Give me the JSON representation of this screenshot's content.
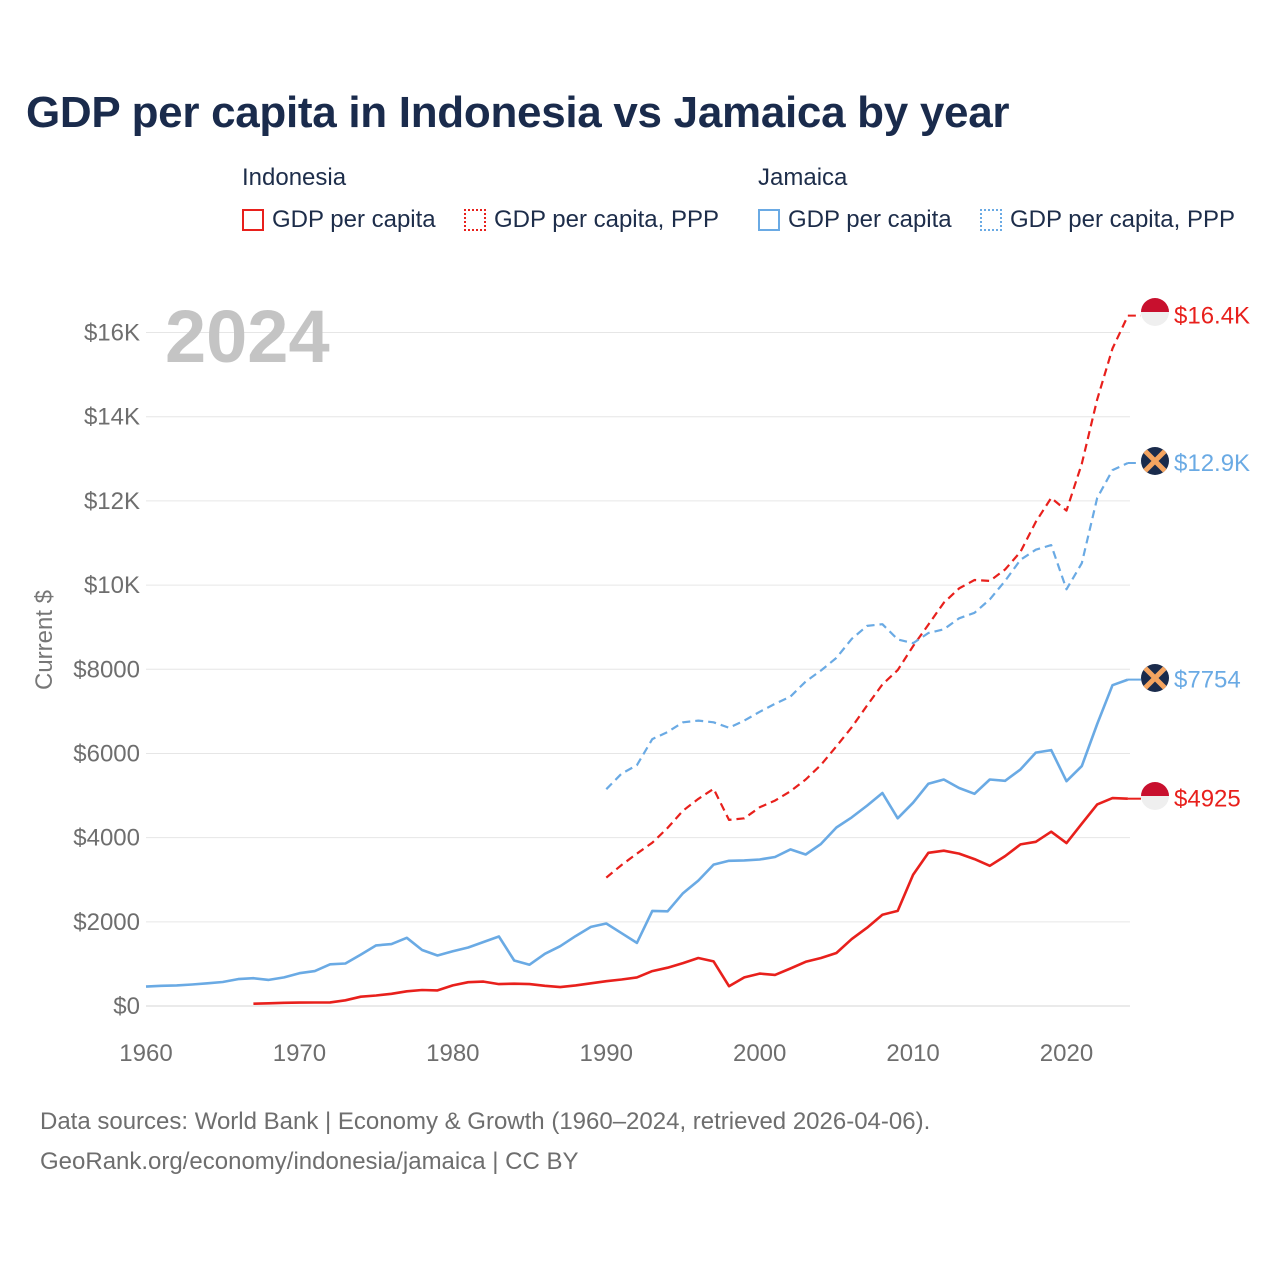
{
  "title": "GDP per capita in Indonesia vs Jamaica by year",
  "legend": {
    "groups": [
      {
        "name": "Indonesia",
        "items": [
          "GDP per capita",
          "GDP per capita, PPP"
        ]
      },
      {
        "name": "Jamaica",
        "items": [
          "GDP per capita",
          "GDP per capita, PPP"
        ]
      }
    ]
  },
  "footer": {
    "line1": "Data sources: World Bank | Economy & Growth (1960–2024, retrieved 2026-04-06).",
    "line2": "GeoRank.org/economy/indonesia/jamaica | CC BY"
  },
  "chart_data": {
    "type": "line",
    "title": "GDP per capita in Indonesia vs Jamaica by year",
    "year_label": "2024",
    "ylabel": "Current $",
    "xlabel": "",
    "xlim": [
      1960,
      2024
    ],
    "ylim": [
      0,
      17000
    ],
    "x_ticks": [
      1960,
      1970,
      1980,
      1990,
      2000,
      2010,
      2020
    ],
    "y_ticks": [
      {
        "value": 0,
        "label": "$0"
      },
      {
        "value": 2000,
        "label": "$2000"
      },
      {
        "value": 4000,
        "label": "$4000"
      },
      {
        "value": 6000,
        "label": "$6000"
      },
      {
        "value": 8000,
        "label": "$8000"
      },
      {
        "value": 10000,
        "label": "$10K"
      },
      {
        "value": 12000,
        "label": "$12K"
      },
      {
        "value": 14000,
        "label": "$14K"
      },
      {
        "value": 16000,
        "label": "$16K"
      }
    ],
    "colors": {
      "indonesia": "#e8201c",
      "jamaica": "#6aaae4"
    },
    "series": [
      {
        "name": "Indonesia GDP per capita",
        "country": "indonesia",
        "style": "solid",
        "end_label": "$4925",
        "x": [
          1967,
          1968,
          1969,
          1970,
          1971,
          1972,
          1973,
          1974,
          1975,
          1976,
          1977,
          1978,
          1979,
          1980,
          1981,
          1982,
          1983,
          1984,
          1985,
          1986,
          1987,
          1988,
          1989,
          1990,
          1991,
          1992,
          1993,
          1994,
          1995,
          1996,
          1997,
          1998,
          1999,
          2000,
          2001,
          2002,
          2003,
          2004,
          2005,
          2006,
          2007,
          2008,
          2009,
          2010,
          2011,
          2012,
          2013,
          2014,
          2015,
          2016,
          2017,
          2018,
          2019,
          2020,
          2021,
          2022,
          2023,
          2024
        ],
        "values": [
          55,
          65,
          75,
          80,
          82,
          85,
          135,
          220,
          250,
          290,
          350,
          380,
          370,
          490,
          565,
          580,
          520,
          530,
          520,
          480,
          450,
          490,
          540,
          590,
          630,
          680,
          830,
          910,
          1020,
          1140,
          1060,
          470,
          680,
          770,
          740,
          890,
          1050,
          1140,
          1260,
          1590,
          1860,
          2170,
          2260,
          3120,
          3640,
          3690,
          3620,
          3490,
          3330,
          3560,
          3840,
          3900,
          4140,
          3870,
          4330,
          4790,
          4940,
          4925
        ]
      },
      {
        "name": "Indonesia GDP per capita, PPP",
        "country": "indonesia",
        "style": "dashed",
        "end_label": "$16.4K",
        "x": [
          1990,
          1991,
          1992,
          1993,
          1994,
          1995,
          1996,
          1997,
          1998,
          1999,
          2000,
          2001,
          2002,
          2003,
          2004,
          2005,
          2006,
          2007,
          2008,
          2009,
          2010,
          2011,
          2012,
          2013,
          2014,
          2015,
          2016,
          2017,
          2018,
          2019,
          2020,
          2021,
          2022,
          2023,
          2024
        ],
        "values": [
          3050,
          3350,
          3620,
          3880,
          4230,
          4640,
          4920,
          5160,
          4420,
          4460,
          4720,
          4880,
          5100,
          5380,
          5730,
          6170,
          6620,
          7140,
          7640,
          7980,
          8550,
          9060,
          9580,
          9920,
          10120,
          10100,
          10370,
          10790,
          11500,
          12070,
          11770,
          12880,
          14410,
          15620,
          16400
        ]
      },
      {
        "name": "Jamaica GDP per capita",
        "country": "jamaica",
        "style": "solid",
        "end_label": "$7754",
        "x": [
          1960,
          1961,
          1962,
          1963,
          1964,
          1965,
          1966,
          1967,
          1968,
          1969,
          1970,
          1971,
          1972,
          1973,
          1974,
          1975,
          1976,
          1977,
          1978,
          1979,
          1980,
          1981,
          1982,
          1983,
          1984,
          1985,
          1986,
          1987,
          1988,
          1989,
          1990,
          1991,
          1992,
          1993,
          1994,
          1995,
          1996,
          1997,
          1998,
          1999,
          2000,
          2001,
          2002,
          2003,
          2004,
          2005,
          2006,
          2007,
          2008,
          2009,
          2010,
          2011,
          2012,
          2013,
          2014,
          2015,
          2016,
          2017,
          2018,
          2019,
          2020,
          2021,
          2022,
          2023,
          2024
        ],
        "values": [
          460,
          480,
          490,
          510,
          540,
          570,
          640,
          660,
          620,
          680,
          780,
          830,
          990,
          1010,
          1220,
          1440,
          1470,
          1620,
          1330,
          1200,
          1300,
          1390,
          1520,
          1650,
          1080,
          980,
          1240,
          1420,
          1660,
          1880,
          1960,
          1730,
          1500,
          2260,
          2250,
          2680,
          2980,
          3360,
          3450,
          3460,
          3480,
          3540,
          3720,
          3600,
          3850,
          4240,
          4480,
          4760,
          5060,
          4460,
          4830,
          5280,
          5380,
          5180,
          5040,
          5380,
          5350,
          5620,
          6020,
          6080,
          5340,
          5700,
          6700,
          7620,
          7754
        ]
      },
      {
        "name": "Jamaica GDP per capita, PPP",
        "country": "jamaica",
        "style": "dashed",
        "end_label": "$12.9K",
        "x": [
          1990,
          1991,
          1992,
          1993,
          1994,
          1995,
          1996,
          1997,
          1998,
          1999,
          2000,
          2001,
          2002,
          2003,
          2004,
          2005,
          2006,
          2007,
          2008,
          2009,
          2010,
          2011,
          2012,
          2013,
          2014,
          2015,
          2016,
          2017,
          2018,
          2019,
          2020,
          2021,
          2022,
          2023,
          2024
        ],
        "values": [
          5150,
          5520,
          5720,
          6340,
          6510,
          6740,
          6780,
          6740,
          6610,
          6780,
          6990,
          7180,
          7350,
          7710,
          7970,
          8270,
          8720,
          9030,
          9070,
          8710,
          8620,
          8860,
          8950,
          9210,
          9340,
          9660,
          10100,
          10600,
          10840,
          10950,
          9900,
          10520,
          12070,
          12730,
          12900
        ]
      }
    ]
  }
}
